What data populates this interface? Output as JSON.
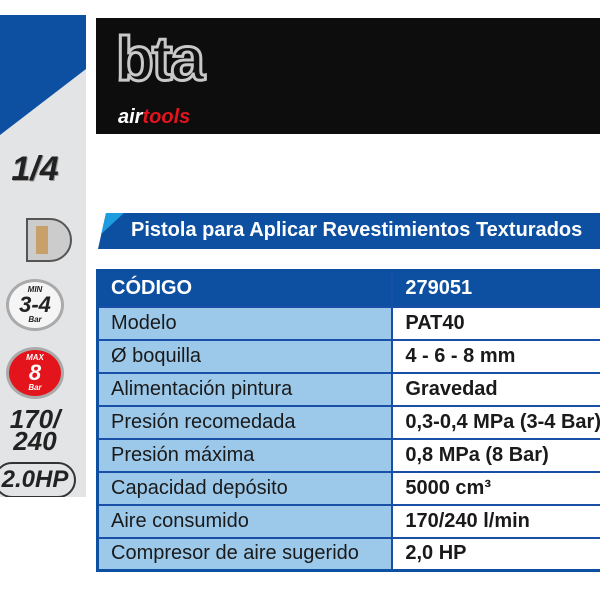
{
  "brand": {
    "logo_main": "bta",
    "logo_sub_white": "air",
    "logo_sub_red": "tools"
  },
  "side_icons": {
    "inlet": "1/4",
    "pressure_min": {
      "label": "MIN",
      "value": "3-4",
      "unit": "Bar"
    },
    "pressure_max": {
      "label": "MAX",
      "value": "8",
      "unit": "Bar"
    },
    "air_consumption": [
      "170/",
      "240"
    ],
    "compressor": "2.0HP"
  },
  "title": "Pistola para Aplicar Revestimientos Texturados",
  "colors": {
    "blue": "#0d4fa0",
    "light_blue": "#9cc8ea",
    "red": "#e3141b"
  },
  "table": {
    "header": {
      "label": "CÓDIGO",
      "value": "279051"
    },
    "rows": [
      {
        "label": "Modelo",
        "value": "PAT40"
      },
      {
        "label": "Ø boquilla",
        "value": "4 - 6 - 8 mm"
      },
      {
        "label": "Alimentación pintura",
        "value": "Gravedad"
      },
      {
        "label": "Presión recomedada",
        "value": "0,3-0,4 MPa (3-4 Bar)"
      },
      {
        "label": "Presión máxima",
        "value": "0,8 MPa (8 Bar)"
      },
      {
        "label": "Capacidad depósito",
        "value": "5000 cm³"
      },
      {
        "label": "Aire consumido",
        "value": "170/240 l/min"
      },
      {
        "label": "Compresor de aire sugerido",
        "value": "2,0 HP"
      }
    ]
  }
}
